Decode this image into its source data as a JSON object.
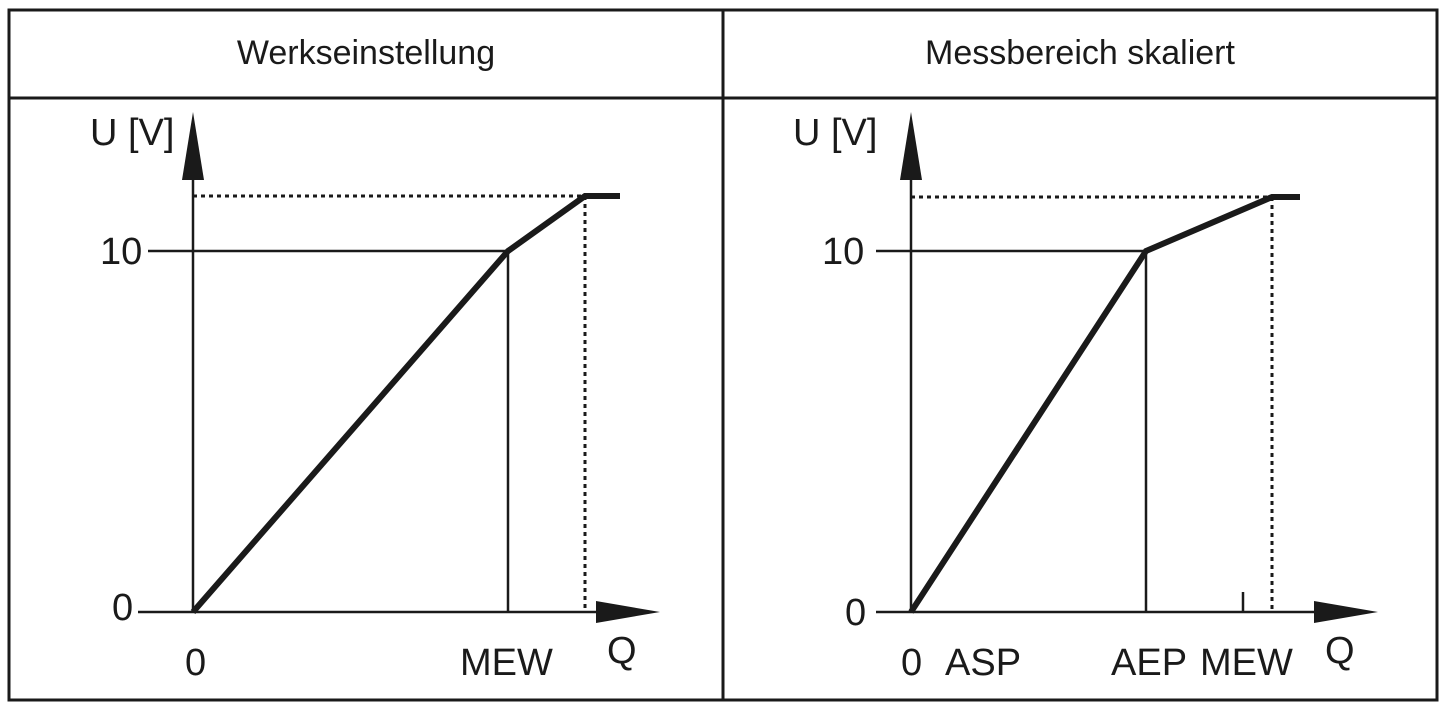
{
  "panels": [
    {
      "header": "Werkseinstellung",
      "y_axis_label": "U [V]",
      "x_axis_label": "Q",
      "y_ticks": [
        "0",
        "10"
      ],
      "x_ticks": [
        "0",
        "MEW"
      ]
    },
    {
      "header": "Messbereich skaliert",
      "y_axis_label": "U [V]",
      "x_axis_label": "Q",
      "y_ticks": [
        "0",
        "10"
      ],
      "x_ticks": [
        "0",
        "ASP",
        "AEP",
        "MEW"
      ]
    }
  ]
}
